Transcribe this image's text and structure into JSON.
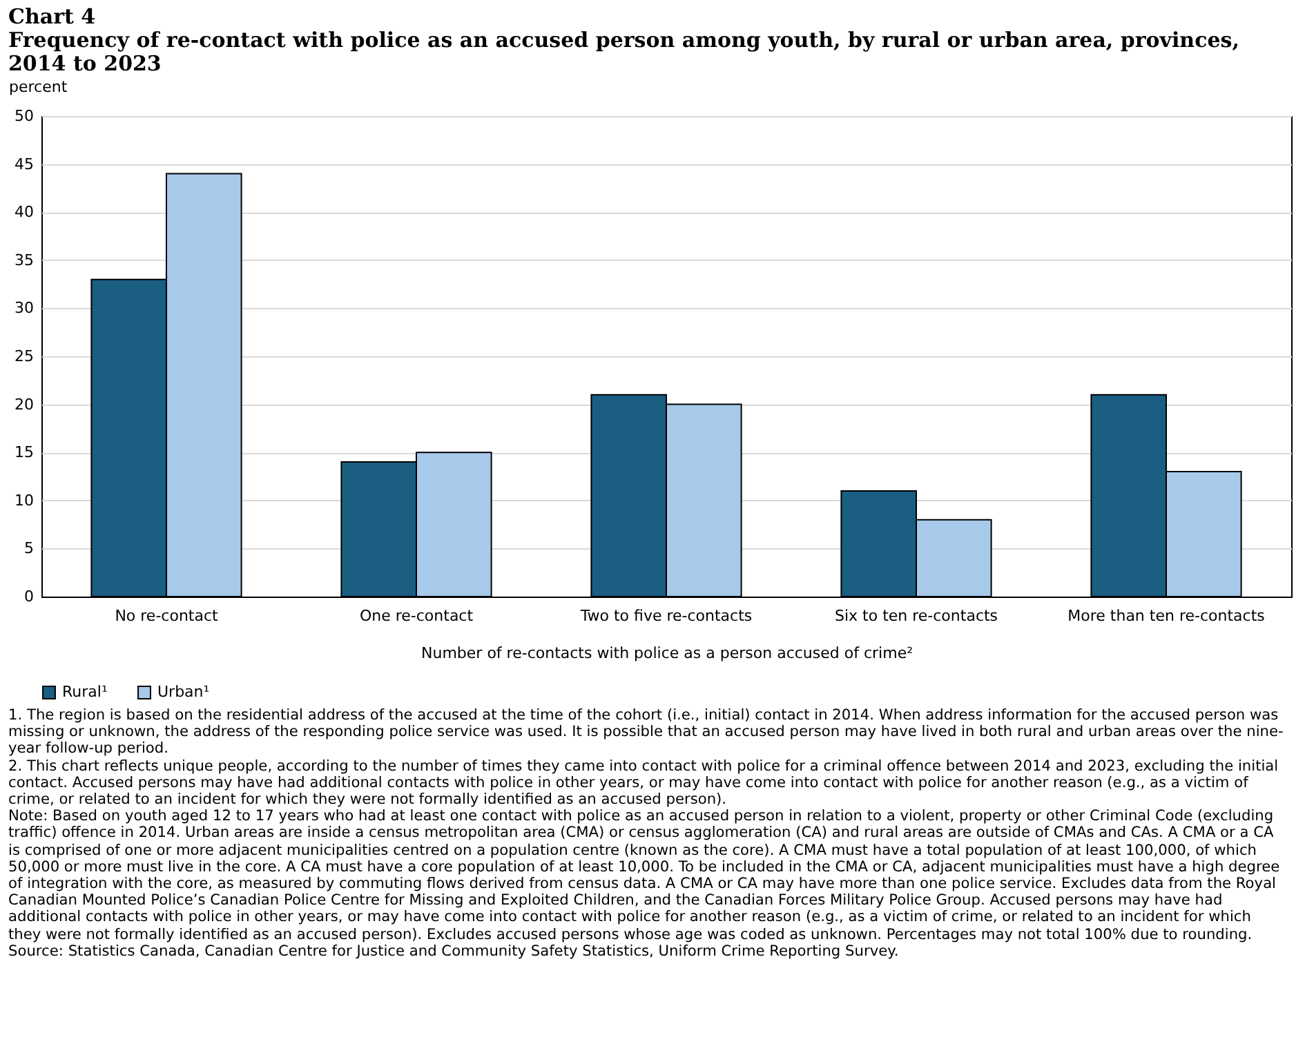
{
  "chart_data": {
    "type": "bar",
    "title": "Chart 4",
    "subtitle": "Frequency of re-contact with police as an accused person among youth, by rural or urban area, provinces, 2014 to 2023",
    "ylabel": "percent",
    "xlabel": "Number of re-contacts with police as a person accused of crime²",
    "categories": [
      "No re-contact",
      "One re-contact",
      "Two to five re-contacts",
      "Six to ten re-contacts",
      "More than ten re-contacts"
    ],
    "series": [
      {
        "name": "Rural¹",
        "color": "#1a5e82",
        "values": [
          33,
          14,
          21,
          11,
          21
        ]
      },
      {
        "name": "Urban¹",
        "color": "#a7caeb",
        "values": [
          44,
          15,
          20,
          8,
          13
        ]
      }
    ],
    "ylim": [
      0,
      50
    ],
    "yticks": [
      0,
      5,
      10,
      15,
      20,
      25,
      30,
      35,
      40,
      45,
      50
    ],
    "grid": "y",
    "legend": "bottom",
    "annotations": [
      "1. The region is based on the residential address of the accused at the time of the cohort (i.e., initial) contact in 2014. When address information for the accused person was missing or unknown, the address of the responding police service was used. It is possible that an accused person may have lived in both rural and urban areas over the nine-year follow-up period.",
      "2. This chart reflects unique people, according to the number of times they came into contact with police for a criminal offence between 2014 and 2023, excluding the initial contact. Accused persons may have had additional contacts with police in other years, or may have come into contact with police for another reason (e.g., as a victim of crime, or related to an incident for which they were not formally identified as an accused person).",
      "Note: Based on youth aged 12 to 17 years who had at least one contact with police as an accused person in relation to a violent, property or other Criminal Code (excluding traffic) offence in 2014. Urban areas are inside a census metropolitan area (CMA) or census agglomeration (CA) and rural areas are outside of CMAs and CAs. A CMA or a CA is comprised of one or more adjacent municipalities centred on a population centre (known as the core). A CMA must have a total population of at least 100,000, of which 50,000 or more must live in the core. A CA must have a core population of at least 10,000. To be included in the CMA or CA, adjacent municipalities must have a high degree of integration with the core, as measured by commuting flows derived from census data. A CMA or CA may have more than one police service. Excludes data from the Royal Canadian Mounted Police’s Canadian Police Centre for Missing and Exploited Children, and the Canadian Forces Military Police Group. Accused persons may have had additional contacts with police in other years, or may have come into contact with police for another reason (e.g., as a victim of crime, or related to an incident for which they were not formally identified as an accused person). Excludes accused persons whose age was coded as unknown. Percentages may not total 100% due to rounding.",
      "Source: Statistics Canada, Canadian Centre for Justice and Community Safety Statistics, Uniform Crime Reporting Survey."
    ]
  }
}
